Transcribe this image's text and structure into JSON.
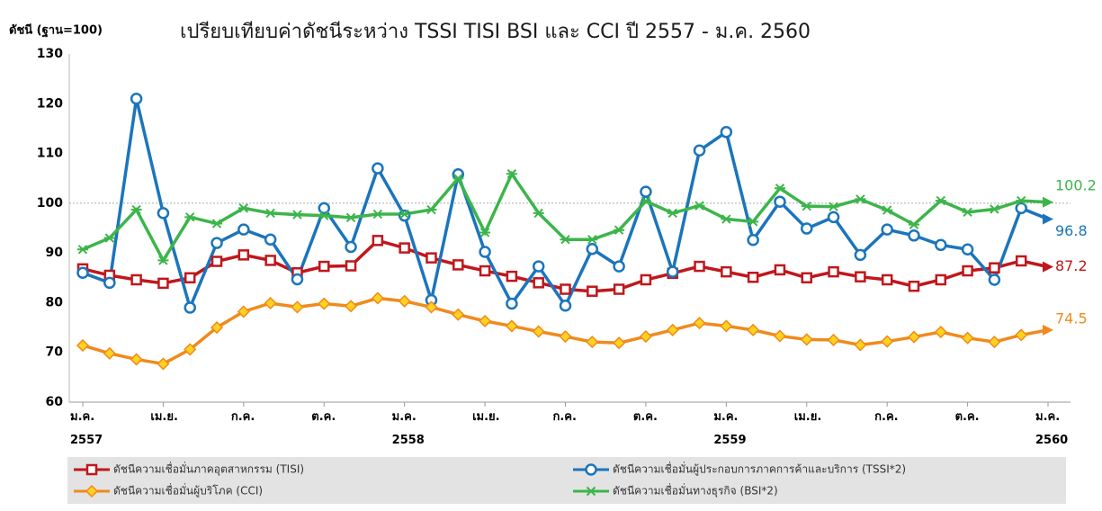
{
  "chart_data": {
    "type": "line",
    "title": "เปรียบเทียบค่าดัชนีระหว่าง TSSI TISI BSI และ CCI ปี 2557 - ม.ค. 2560",
    "y_label": "ดัชนี (ฐาน=100)",
    "categories": [
      "ม.ค.\n2557",
      null,
      null,
      "เม.ย.",
      null,
      null,
      "ก.ค.",
      null,
      null,
      "ต.ค.",
      null,
      null,
      "ม.ค.\n2558",
      null,
      null,
      "เม.ย.",
      null,
      null,
      "ก.ค.",
      null,
      null,
      "ต.ค.",
      null,
      null,
      "ม.ค.\n2559",
      null,
      null,
      "เม.ย.",
      null,
      null,
      "ก.ค.",
      null,
      null,
      "ต.ค.",
      null,
      null,
      "ม.ค.\n2560"
    ],
    "series": [
      {
        "name": "ดัชนีความเชื่อมั่นภาคอุตสาหกรรม (TISI)",
        "color": "#c0171c",
        "marker": "square",
        "values": [
          86.8,
          85.5,
          84.6,
          83.9,
          85.0,
          88.3,
          89.6,
          88.5,
          86.0,
          87.3,
          87.4,
          92.5,
          91.0,
          89.0,
          87.6,
          86.4,
          85.3,
          84.0,
          82.7,
          82.3,
          82.7,
          84.6,
          85.9,
          87.3,
          86.2,
          85.1,
          86.6,
          85.0,
          86.2,
          85.2,
          84.6,
          83.3,
          84.6,
          86.4,
          87.0,
          88.4,
          87.2
        ]
      },
      {
        "name": "ดัชนีความเชื่อมั่นผู้ประกอบการภาคการค้าและบริการ (TSSI*2)",
        "color": "#1b75bc",
        "marker": "circle",
        "values": [
          86.0,
          84.0,
          121.0,
          98.0,
          79.0,
          92.0,
          94.7,
          92.7,
          84.7,
          99.0,
          91.2,
          107.0,
          97.5,
          80.5,
          105.8,
          90.2,
          79.8,
          87.3,
          79.4,
          90.8,
          87.3,
          102.3,
          86.2,
          110.6,
          114.3,
          92.6,
          100.3,
          94.9,
          97.2,
          89.6,
          94.7,
          93.5,
          91.6,
          90.7,
          84.6,
          99.0,
          96.8
        ]
      },
      {
        "name": "ดัชนีความเชื่อมั่นผู้บริโภค (CCI)",
        "color": "#f08a1c",
        "marker": "diamond",
        "values": [
          71.4,
          69.8,
          68.6,
          67.7,
          70.6,
          75.0,
          78.2,
          79.9,
          79.1,
          79.8,
          79.3,
          80.9,
          80.3,
          79.1,
          77.6,
          76.3,
          75.3,
          74.2,
          73.2,
          72.1,
          71.9,
          73.2,
          74.5,
          75.9,
          75.3,
          74.5,
          73.3,
          72.6,
          72.5,
          71.5,
          72.2,
          73.1,
          74.1,
          72.9,
          72.1,
          73.5,
          74.5
        ]
      },
      {
        "name": "ดัชนีความเชื่อมั่นทางธุรกิจ (BSI*2)",
        "color": "#3cb54a",
        "marker": "star",
        "values": [
          90.7,
          93.0,
          98.7,
          88.5,
          97.2,
          95.9,
          99.0,
          98.0,
          97.7,
          97.5,
          97.1,
          97.8,
          97.8,
          98.7,
          105.0,
          94.1,
          105.9,
          98.0,
          92.7,
          92.7,
          94.6,
          100.4,
          98.0,
          99.5,
          96.8,
          96.3,
          103.0,
          99.4,
          99.3,
          100.8,
          98.6,
          95.7,
          100.5,
          98.2,
          98.8,
          100.5,
          100.2
        ]
      }
    ],
    "ylim": [
      60,
      130
    ],
    "yticks": [
      60,
      70,
      80,
      90,
      100,
      110,
      120,
      130
    ],
    "reference_line": 100,
    "grid": false
  }
}
